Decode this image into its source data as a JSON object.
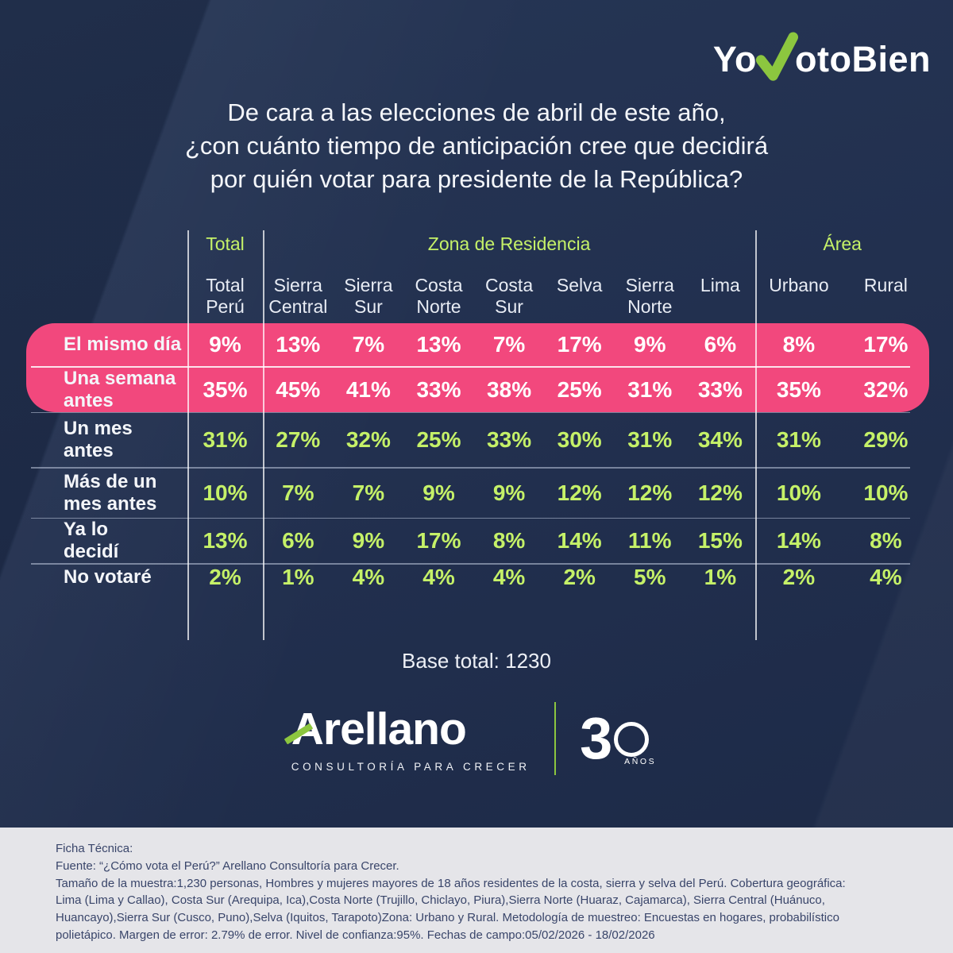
{
  "colors": {
    "background_navy": "#22304F",
    "highlight_pink": "#F2487D",
    "accent_lime": "#C5F168",
    "brand_green": "#8CC63F",
    "footer_bg": "#E5E5E9",
    "footer_text": "#39456A",
    "text_white": "#FFFFFF"
  },
  "logo": {
    "part1": "Yo",
    "part2": "otoBien"
  },
  "title": {
    "line1": "De cara a las elecciones de abril de este año,",
    "line2": "¿con cuánto tiempo de anticipación cree que decidirá",
    "line3": "por quién votar para presidente de la República?"
  },
  "table": {
    "group_headers": {
      "total": "Total",
      "zona": "Zona de Residencia",
      "area": "Área"
    },
    "columns": [
      "Total\nPerú",
      "Sierra\nCentral",
      "Sierra\nSur",
      "Costa\nNorte",
      "Costa\nSur",
      "Selva",
      "Sierra\nNorte",
      "Lima",
      "Urbano",
      "Rural"
    ],
    "rows": [
      {
        "label": "El mismo día",
        "highlight": true,
        "values": [
          "9%",
          "13%",
          "7%",
          "13%",
          "7%",
          "17%",
          "9%",
          "6%",
          "8%",
          "17%"
        ]
      },
      {
        "label": "Una semana\nantes",
        "highlight": true,
        "values": [
          "35%",
          "45%",
          "41%",
          "33%",
          "38%",
          "25%",
          "31%",
          "33%",
          "35%",
          "32%"
        ]
      },
      {
        "label": "Un mes\nantes",
        "highlight": false,
        "values": [
          "31%",
          "27%",
          "32%",
          "25%",
          "33%",
          "30%",
          "31%",
          "34%",
          "31%",
          "29%"
        ]
      },
      {
        "label": "Más de un\nmes antes",
        "highlight": false,
        "values": [
          "10%",
          "7%",
          "7%",
          "9%",
          "9%",
          "12%",
          "12%",
          "12%",
          "10%",
          "10%"
        ]
      },
      {
        "label": "Ya lo\ndecidí",
        "highlight": false,
        "values": [
          "13%",
          "6%",
          "9%",
          "17%",
          "8%",
          "14%",
          "11%",
          "15%",
          "14%",
          "8%"
        ]
      },
      {
        "label": "No votaré",
        "highlight": false,
        "values": [
          "2%",
          "1%",
          "4%",
          "4%",
          "4%",
          "2%",
          "5%",
          "1%",
          "2%",
          "4%"
        ]
      }
    ]
  },
  "base_total": "Base total: 1230",
  "brand": {
    "name_initial": "A",
    "name_rest": "rellano",
    "tagline": "CONSULTORÍA PARA CRECER",
    "anniversary_number": "30",
    "anniversary_unit": "AÑOS"
  },
  "footer": {
    "lines": [
      "Ficha Técnica:",
      "Fuente: “¿Cómo vota el Perú?” Arellano Consultoría para Crecer.",
      "Tamaño de la muestra:1,230 personas, Hombres y mujeres mayores de 18 años residentes de la costa, sierra y selva del Perú. Cobertura geográfica:",
      "Lima (Lima y Callao), Costa Sur (Arequipa, Ica),Costa Norte (Trujillo, Chiclayo, Piura),Sierra Norte (Huaraz, Cajamarca), Sierra Central (Huánuco,",
      "Huancayo),Sierra Sur (Cusco, Puno),Selva (Iquitos, Tarapoto)Zona: Urbano y Rural. Metodología de muestreo: Encuestas en hogares, probabilístico",
      "polietápico. Margen de error: 2.79% de error. Nivel de confianza:95%. Fechas de campo:05/02/2026 - 18/02/2026"
    ]
  },
  "chart_data": {
    "type": "table",
    "title": "De cara a las elecciones de abril de este año, ¿con cuánto tiempo de anticipación cree que decidirá por quién votar para presidente de la República?",
    "categories": [
      "Total Perú",
      "Sierra Central",
      "Sierra Sur",
      "Costa Norte",
      "Costa Sur",
      "Selva",
      "Sierra Norte",
      "Lima",
      "Urbano",
      "Rural"
    ],
    "column_groups": [
      {
        "label": "Total",
        "span": [
          "Total Perú"
        ]
      },
      {
        "label": "Zona de Residencia",
        "span": [
          "Sierra Central",
          "Sierra Sur",
          "Costa Norte",
          "Costa Sur",
          "Selva",
          "Sierra Norte",
          "Lima"
        ]
      },
      {
        "label": "Área",
        "span": [
          "Urbano",
          "Rural"
        ]
      }
    ],
    "series": [
      {
        "name": "El mismo día",
        "highlighted": true,
        "values": [
          9,
          13,
          7,
          13,
          7,
          17,
          9,
          6,
          8,
          17
        ]
      },
      {
        "name": "Una semana antes",
        "highlighted": true,
        "values": [
          35,
          45,
          41,
          33,
          38,
          25,
          31,
          33,
          35,
          32
        ]
      },
      {
        "name": "Un mes antes",
        "highlighted": false,
        "values": [
          31,
          27,
          32,
          25,
          33,
          30,
          31,
          34,
          31,
          29
        ]
      },
      {
        "name": "Más de un mes antes",
        "highlighted": false,
        "values": [
          10,
          7,
          7,
          9,
          9,
          12,
          12,
          12,
          10,
          10
        ]
      },
      {
        "name": "Ya lo decidí",
        "highlighted": false,
        "values": [
          13,
          6,
          9,
          17,
          8,
          14,
          11,
          15,
          14,
          8
        ]
      },
      {
        "name": "No votaré",
        "highlighted": false,
        "values": [
          2,
          1,
          4,
          4,
          4,
          2,
          5,
          1,
          2,
          4
        ]
      }
    ],
    "unit": "%",
    "base_total": 1230
  }
}
